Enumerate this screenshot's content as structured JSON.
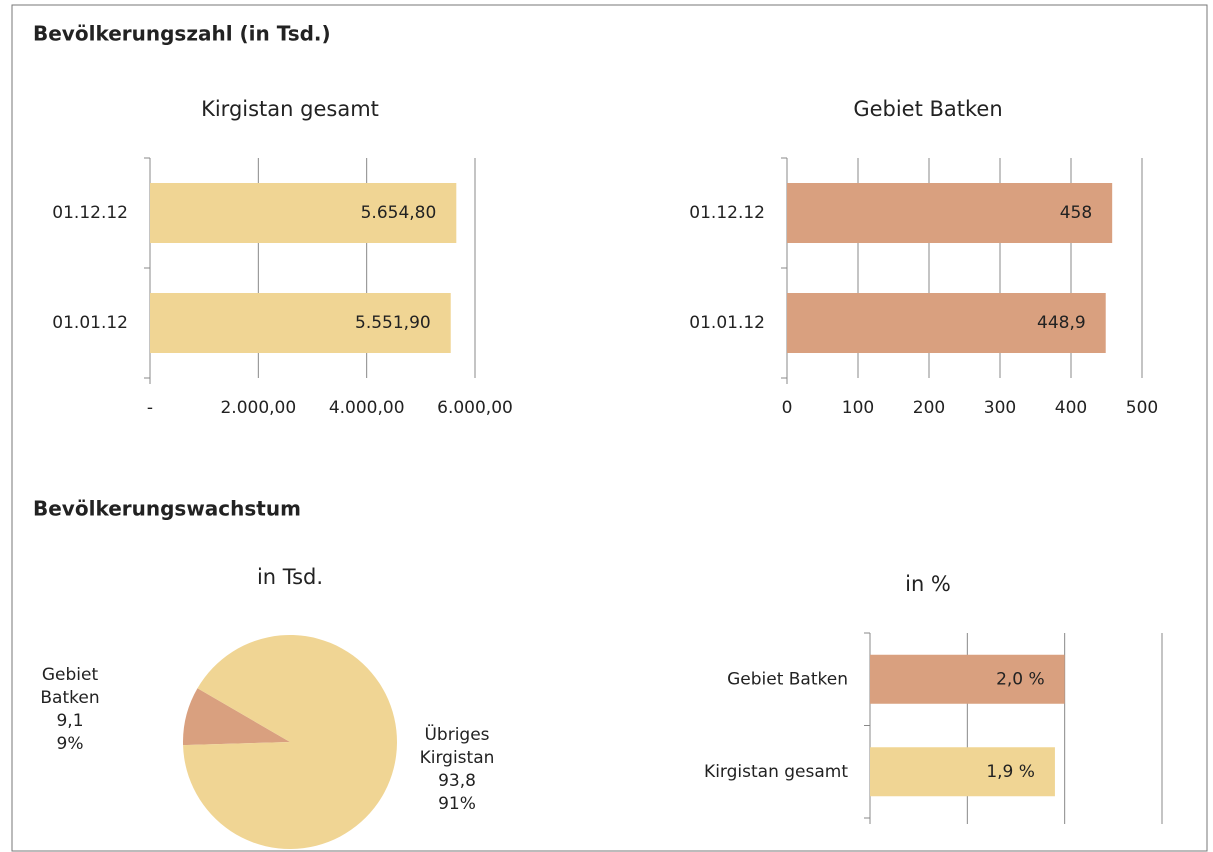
{
  "headings": [
    "Bevölkerungszahl (in Tsd.)",
    "Bevölkerungswachstum"
  ],
  "chart_data": [
    {
      "type": "hbar",
      "title": "Kirgistan gesamt",
      "categories": [
        "01.12.12",
        "01.01.12"
      ],
      "values": [
        5654.8,
        5551.9
      ],
      "value_labels": [
        "5.654,80",
        "5.551,90"
      ],
      "color": "#f0d594",
      "xlim": [
        0,
        6000
      ],
      "xticks": [
        {
          "value": 0,
          "label": "-"
        },
        {
          "value": 2000,
          "label": "2.000,00"
        },
        {
          "value": 4000,
          "label": "4.000,00"
        },
        {
          "value": 6000,
          "label": "6.000,00"
        }
      ]
    },
    {
      "type": "hbar",
      "title": "Gebiet Batken",
      "categories": [
        "01.12.12",
        "01.01.12"
      ],
      "values": [
        458,
        448.9
      ],
      "value_labels": [
        "458",
        "448,9"
      ],
      "color": "#d9a07f",
      "xlim": [
        0,
        500
      ],
      "xticks": [
        0,
        100,
        200,
        300,
        400,
        500
      ]
    },
    {
      "type": "pie",
      "title": "in Tsd.",
      "categories": [
        "Gebiet Batken",
        "Übriges Kirgistan"
      ],
      "values": [
        9.1,
        93.8
      ],
      "value_labels": [
        "9,1",
        "93,8"
      ],
      "percent_labels": [
        "9%",
        "91%"
      ],
      "colors": [
        "#d9a07f",
        "#f0d594"
      ]
    },
    {
      "type": "hbar",
      "title": "in %",
      "categories": [
        "Gebiet Batken",
        "Kirgistan gesamt"
      ],
      "values": [
        2.0,
        1.9
      ],
      "value_labels": [
        "2,0 %",
        "1,9 %"
      ],
      "colors": [
        "#d9a07f",
        "#f0d594"
      ],
      "xlim": [
        0,
        3
      ],
      "xgrid": [
        0,
        1,
        2,
        3
      ]
    }
  ]
}
